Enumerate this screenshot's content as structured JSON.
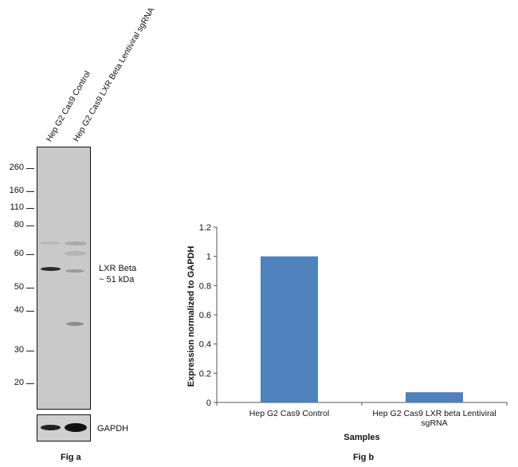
{
  "fig_a": {
    "caption": "Fig a",
    "lanes": [
      "Hep G2 Cas9 Control",
      "Hep G2 Cas9 LXR Beta Lentiviral sgRNA"
    ],
    "mw_markers": [
      "260",
      "160",
      "110",
      "80",
      "60",
      "50",
      "40",
      "30",
      "20"
    ],
    "target_label_line1": "LXR Beta",
    "target_label_line2": "~ 51 kDa",
    "loading_control_label": "GAPDH"
  },
  "fig_b": {
    "caption": "Fig b"
  },
  "colors": {
    "bar": "#4f81bd",
    "blot_bg": "#c9c9c9"
  },
  "chart_data": {
    "type": "bar",
    "categories": [
      "Hep G2 Cas9 Control",
      "Hep G2 Cas9 LXR beta Lentiviral sgRNA"
    ],
    "category_lines": [
      [
        "Hep G2 Cas9 Control"
      ],
      [
        "Hep G2 Cas9 LXR beta Lentiviral",
        "sgRNA"
      ]
    ],
    "values": [
      1.0,
      0.07
    ],
    "title": "",
    "xlabel": "Samples",
    "ylabel": "Expression normalized to GAPDH",
    "ylim": [
      0,
      1.2
    ],
    "yticks": [
      "0",
      "0.2",
      "0.4",
      "0.6",
      "0.8",
      "1",
      "1.2"
    ],
    "grid": false
  }
}
